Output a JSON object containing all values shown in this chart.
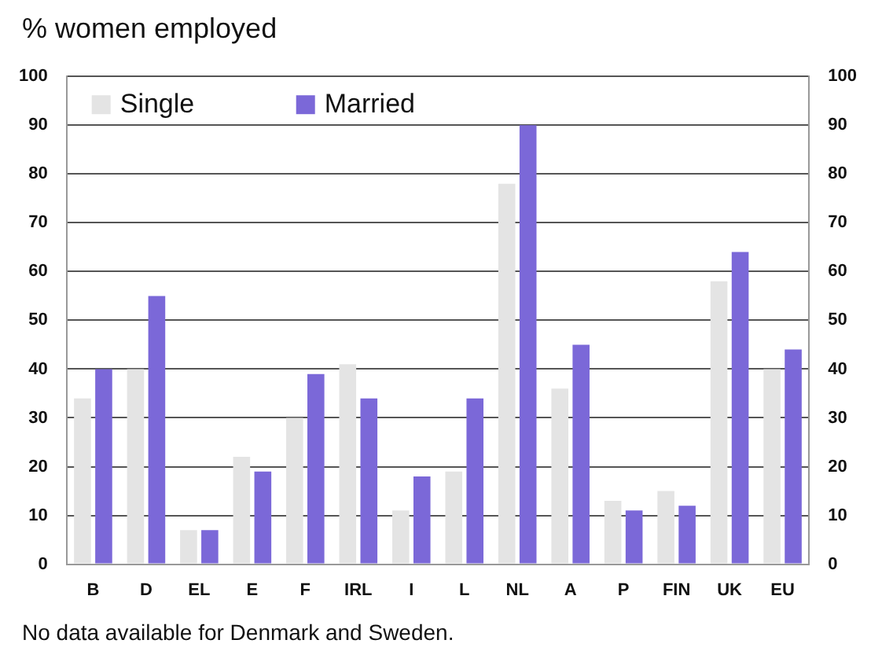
{
  "chart_data": {
    "type": "bar",
    "title": "% women employed",
    "categories": [
      "B",
      "D",
      "EL",
      "E",
      "F",
      "IRL",
      "I",
      "L",
      "NL",
      "A",
      "P",
      "FIN",
      "UK",
      "EU"
    ],
    "series": [
      {
        "name": "Single",
        "color": "#e4e4e4",
        "values": [
          34,
          40,
          7,
          22,
          30,
          41,
          11,
          19,
          78,
          36,
          13,
          15,
          58,
          40
        ]
      },
      {
        "name": "Married",
        "color": "#7b68d8",
        "values": [
          40,
          55,
          7,
          19,
          39,
          34,
          18,
          34,
          90,
          45,
          11,
          12,
          64,
          44
        ]
      }
    ],
    "ylim": [
      0,
      100
    ],
    "yticks": [
      0,
      10,
      20,
      30,
      40,
      50,
      60,
      70,
      80,
      90,
      100
    ],
    "y2lim": [
      0,
      100
    ],
    "y2ticks": [
      0,
      10,
      20,
      30,
      40,
      50,
      60,
      70,
      80,
      90,
      100
    ],
    "grid": "y",
    "legend": "top left",
    "annotations": [
      "No data available for Denmark and Sweden."
    ]
  }
}
